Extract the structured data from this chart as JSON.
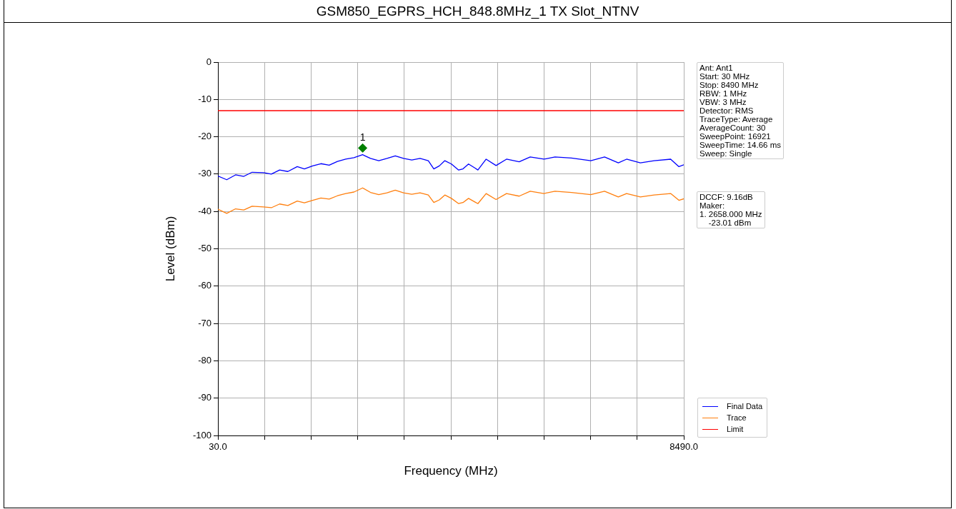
{
  "chart_data": {
    "type": "line",
    "title": "GSM850_EGPRS_HCH_848.8MHz_1 TX Slot_NTNV",
    "xlabel": "Frequency (MHz)",
    "ylabel": "Level (dBm)",
    "xlim": [
      30,
      8490
    ],
    "xticks": [
      {
        "value": 30,
        "label": "30.0"
      },
      {
        "value": 876,
        "label": null
      },
      {
        "value": 1722,
        "label": null
      },
      {
        "value": 2568,
        "label": null
      },
      {
        "value": 3414,
        "label": null
      },
      {
        "value": 4260,
        "label": null
      },
      {
        "value": 5106,
        "label": null
      },
      {
        "value": 5952,
        "label": null
      },
      {
        "value": 6798,
        "label": null
      },
      {
        "value": 7644,
        "label": null
      },
      {
        "value": 8490,
        "label": "8490.0"
      }
    ],
    "ylim": [
      -100,
      0
    ],
    "yticks": [
      -100,
      -90,
      -80,
      -70,
      -60,
      -50,
      -40,
      -30,
      -20,
      -10,
      0
    ],
    "grid": true,
    "legend": "bottom right",
    "series": [
      {
        "name": "Final Data",
        "color": "#0000ff",
        "x": [
          30,
          190,
          350,
          500,
          650,
          860,
          1000,
          1150,
          1300,
          1470,
          1600,
          1750,
          1900,
          2050,
          2200,
          2350,
          2500,
          2658,
          2800,
          2950,
          3100,
          3250,
          3400,
          3550,
          3700,
          3850,
          3950,
          4050,
          4150,
          4270,
          4400,
          4480,
          4580,
          4700,
          4750,
          4900,
          5080,
          5270,
          5500,
          5700,
          5950,
          6150,
          6450,
          6800,
          7050,
          7300,
          7450,
          7700,
          7950,
          8250,
          8400,
          8490
        ],
        "values": [
          -30.5,
          -31.5,
          -30.2,
          -30.6,
          -29.5,
          -29.6,
          -30,
          -28.9,
          -29.3,
          -28,
          -28.6,
          -27.8,
          -27.2,
          -27.6,
          -26.6,
          -26,
          -25.6,
          -24.8,
          -25.8,
          -26.4,
          -25.8,
          -25.1,
          -25.8,
          -26.2,
          -25.8,
          -26.4,
          -28.6,
          -27.8,
          -26.4,
          -27.3,
          -28.9,
          -28.6,
          -27.3,
          -28.4,
          -28.9,
          -26,
          -27.7,
          -26,
          -26.7,
          -25.4,
          -26,
          -25.4,
          -25.7,
          -26.4,
          -25.4,
          -27,
          -26,
          -27,
          -26.4,
          -26,
          -28,
          -27.5
        ]
      },
      {
        "name": "Trace",
        "color": "#ff7f0e",
        "x": [
          30,
          190,
          350,
          500,
          650,
          860,
          1000,
          1150,
          1300,
          1470,
          1600,
          1750,
          1900,
          2050,
          2200,
          2350,
          2500,
          2658,
          2800,
          2950,
          3100,
          3250,
          3400,
          3550,
          3700,
          3850,
          3950,
          4050,
          4150,
          4270,
          4400,
          4480,
          4580,
          4700,
          4750,
          4900,
          5080,
          5270,
          5500,
          5700,
          5950,
          6150,
          6450,
          6800,
          7050,
          7300,
          7450,
          7700,
          7950,
          8250,
          8400,
          8490
        ],
        "values": [
          -39.4,
          -40.5,
          -39.3,
          -39.6,
          -38.6,
          -38.8,
          -39,
          -38,
          -38.4,
          -37.2,
          -37.7,
          -37,
          -36.4,
          -36.7,
          -35.8,
          -35.2,
          -34.8,
          -33.7,
          -34.9,
          -35.5,
          -35,
          -34.3,
          -35,
          -35.4,
          -35,
          -35.6,
          -37.6,
          -36.9,
          -35.6,
          -36.5,
          -37.9,
          -37.6,
          -36.5,
          -37.5,
          -37.9,
          -35.2,
          -36.8,
          -35.2,
          -35.9,
          -34.6,
          -35.2,
          -34.6,
          -34.9,
          -35.5,
          -34.6,
          -36.1,
          -35.2,
          -36.1,
          -35.6,
          -35.2,
          -37,
          -36.6
        ]
      },
      {
        "name": "Limit",
        "color": "#ff0000",
        "x": [
          30,
          8490
        ],
        "values": [
          -13,
          -13
        ]
      },
      {
        "type": "scatter",
        "marker": "diamond",
        "color": "#008000",
        "x": [
          2658
        ],
        "values": [
          -23.01
        ]
      }
    ],
    "annotations": [
      {
        "text": "1",
        "x": 2658,
        "y": -23.01
      },
      "Ant: Ant1\nStart: 30 MHz\nStop: 8490 MHz\nRBW: 1 MHz\nVBW: 3 MHz\nDetector: RMS\nTraceType: Average\nAverageCount: 30\nSweepPoint: 16921\nSweepTime: 14.66 ms\nSweep: Single",
      "DCCF: 9.16dB\nMaker:\n1. 2658.000 MHz\n    -23.01 dBm"
    ]
  }
}
